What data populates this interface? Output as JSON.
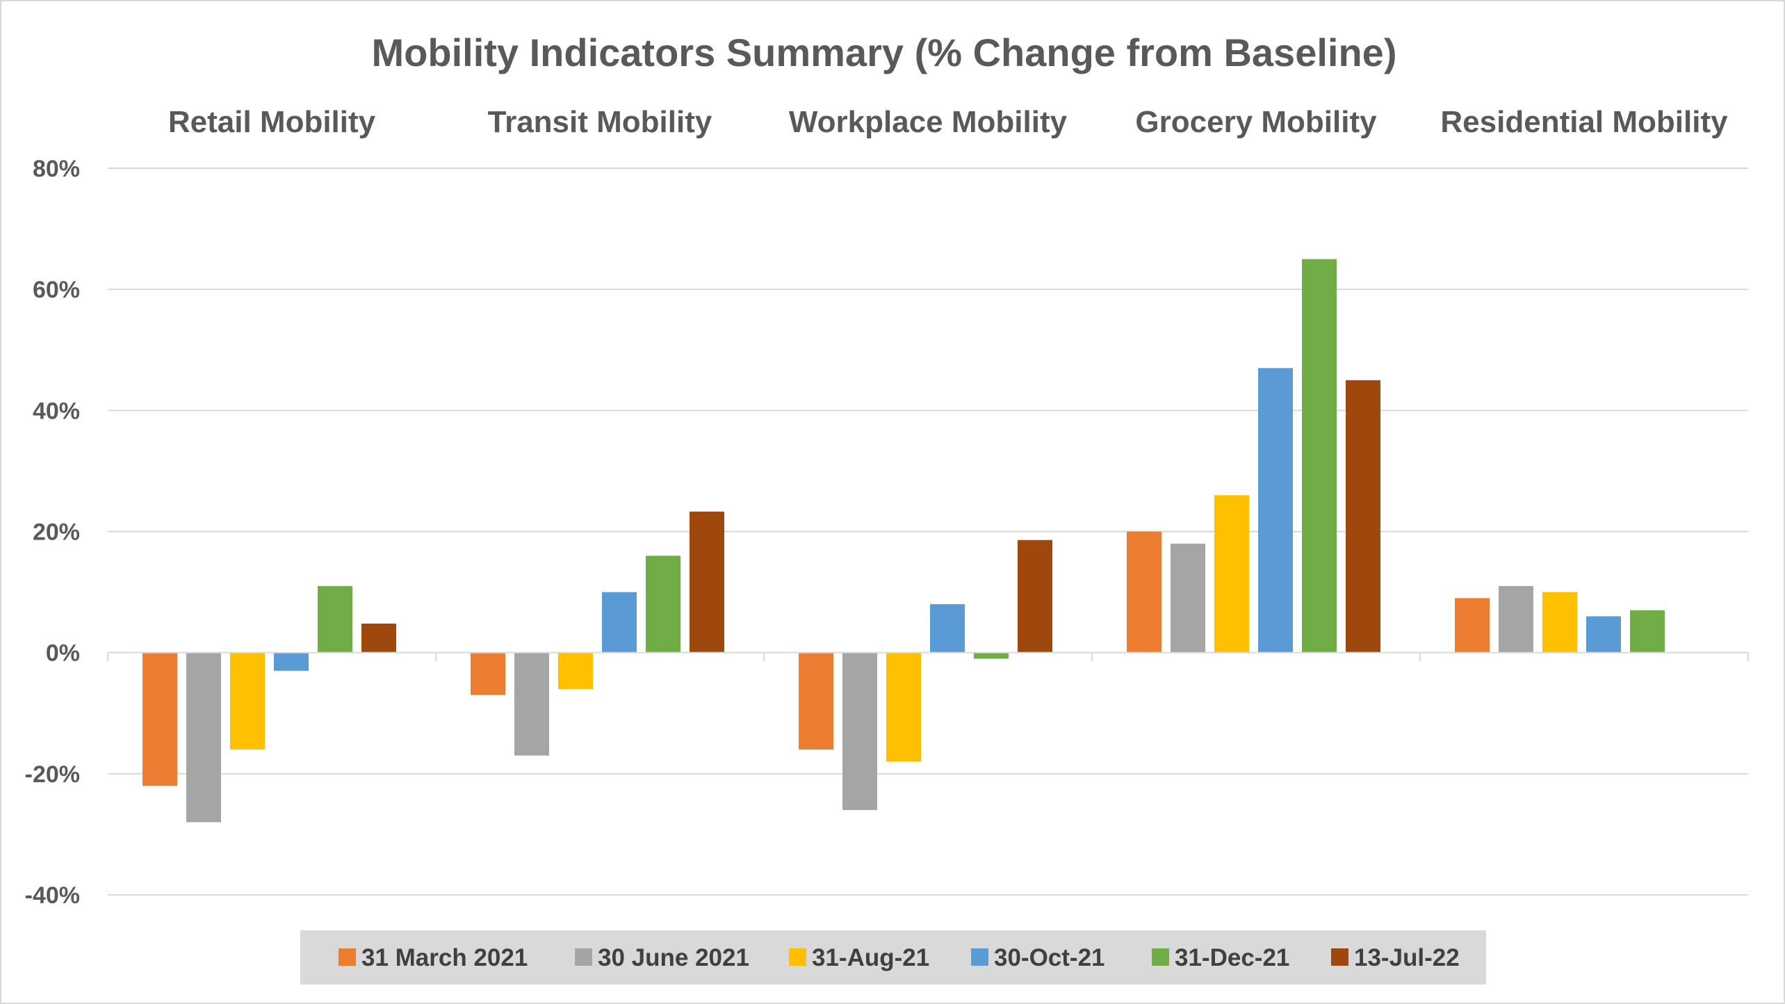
{
  "chart_data": {
    "type": "bar",
    "title": "Mobility Indicators Summary (% Change from Baseline)",
    "categories": [
      "Retail Mobility",
      "Transit Mobility",
      "Workplace Mobility",
      "Grocery Mobility",
      "Residential Mobility"
    ],
    "category_label_position": "top",
    "y_ticks": [
      "80%",
      "60%",
      "40%",
      "20%",
      "0%",
      "-20%",
      "-40%"
    ],
    "ylim": [
      -40,
      80
    ],
    "grid": true,
    "legend_position": "bottom",
    "series": [
      {
        "name": "31 March 2021",
        "color": "#ED7D31",
        "values": [
          -22,
          -7,
          -16,
          20,
          9
        ]
      },
      {
        "name": "30 June 2021",
        "color": "#A5A5A5",
        "values": [
          -28,
          -17,
          -26,
          18,
          11
        ]
      },
      {
        "name": "31-Aug-21",
        "color": "#FFC000",
        "values": [
          -16,
          -6,
          -18,
          26,
          10
        ]
      },
      {
        "name": "30-Oct-21",
        "color": "#5B9BD5",
        "values": [
          -3,
          10,
          8,
          47,
          6
        ]
      },
      {
        "name": "31-Dec-21",
        "color": "#70AD47",
        "values": [
          11,
          16,
          -1,
          65,
          7
        ]
      },
      {
        "name": "13-Jul-22",
        "color": "#9E480E",
        "values": [
          4.8,
          23.3,
          18.6,
          45,
          null
        ]
      }
    ]
  }
}
